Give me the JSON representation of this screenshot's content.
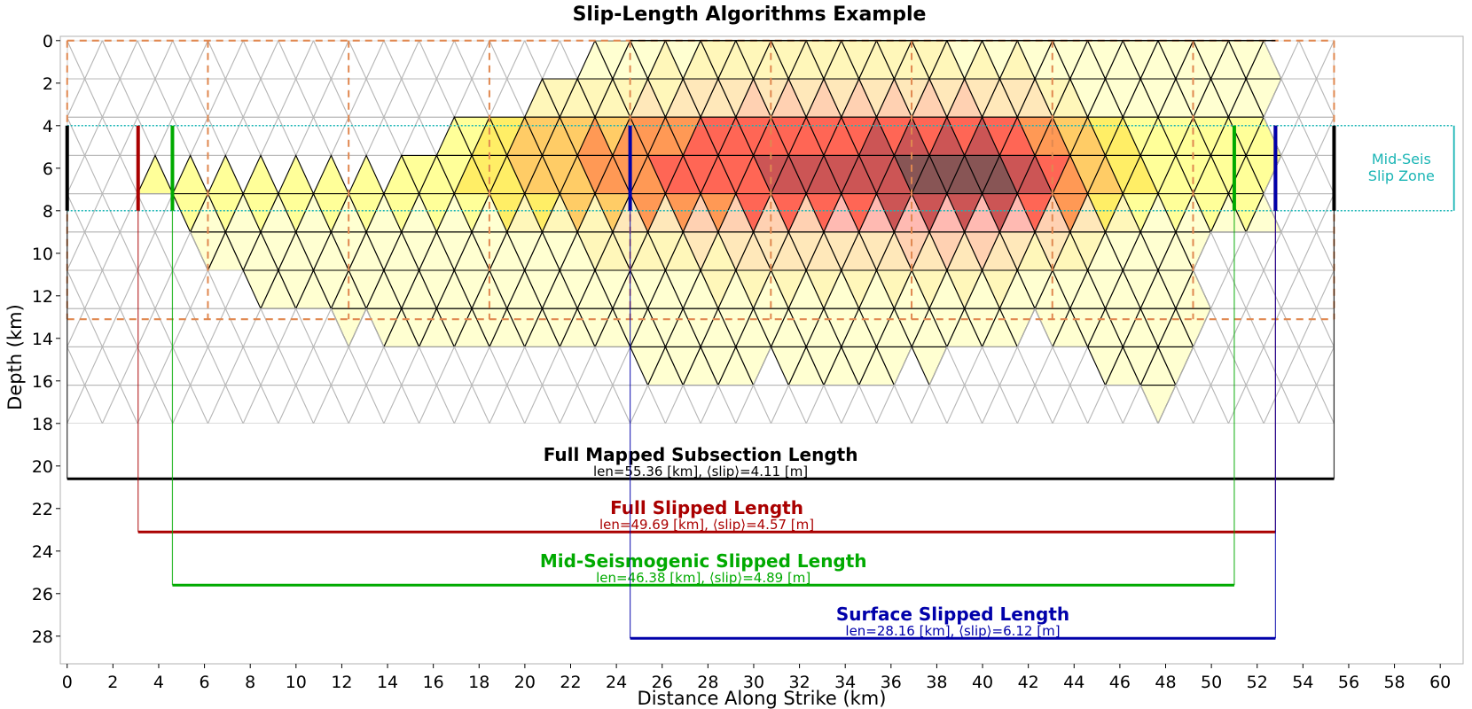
{
  "chart_data": {
    "type": "scatter",
    "title": "Slip-Length Algorithms Example",
    "xlabel": "Distance Along Strike (km)",
    "ylabel": "Depth (km)",
    "xlim": [
      -0.3,
      61
    ],
    "ylim": [
      29.3,
      -0.2
    ],
    "y_inverted": true,
    "xticks": [
      "0",
      "2",
      "4",
      "6",
      "8",
      "10",
      "12",
      "14",
      "16",
      "18",
      "20",
      "22",
      "24",
      "26",
      "28",
      "30",
      "32",
      "34",
      "36",
      "38",
      "40",
      "42",
      "44",
      "46",
      "48",
      "50",
      "52",
      "54",
      "56",
      "58",
      "60"
    ],
    "yticks": [
      "0",
      "2",
      "4",
      "6",
      "8",
      "10",
      "12",
      "14",
      "16",
      "18",
      "20",
      "22",
      "24",
      "26",
      "28"
    ],
    "grid": false,
    "mesh": {
      "x_start": 0,
      "x_end": 55.36,
      "columns": 36,
      "depth_bottom": 18,
      "rows": 10
    },
    "subsection_boundaries_km": [
      0,
      6.15,
      12.3,
      18.45,
      24.6,
      30.75,
      36.9,
      43.05,
      49.2,
      55.36
    ],
    "subsection_depth_km": [
      0,
      13.1
    ],
    "mid_seismogenic_zone": {
      "top": 4,
      "bottom": 8,
      "label_line1": "Mid-Seis",
      "label_line2": "Slip Zone"
    },
    "lengths": [
      {
        "title": "Full Mapped Subsection Length",
        "subtitle": "len=55.36 [km], ⟨slip⟩=4.11 [m]",
        "x_start": 0,
        "x_end": 55.36,
        "depth": 20.6,
        "color": "#000000"
      },
      {
        "title": "Full Slipped Length",
        "subtitle": "len=49.69 [km], ⟨slip⟩=4.57 [m]",
        "x_start": 3.1,
        "x_end": 52.8,
        "depth": 23.1,
        "color": "#aa0000"
      },
      {
        "title": "Mid-Seismogenic Slipped Length",
        "subtitle": "len=46.38 [km], ⟨slip⟩=4.89 [m]",
        "x_start": 4.6,
        "x_end": 51.0,
        "depth": 25.6,
        "color": "#00aa00"
      },
      {
        "title": "Surface Slipped Length",
        "subtitle": "len=28.16 [km], ⟨slip⟩=6.12 [m]",
        "x_start": 24.6,
        "x_end": 52.8,
        "depth": 28.1,
        "color": "#0000aa"
      }
    ],
    "slip_color_scale": [
      "#ffff99",
      "#ffee66",
      "#ffcc66",
      "#ff9955",
      "#ff6655",
      "#cc5555",
      "#885555"
    ]
  }
}
